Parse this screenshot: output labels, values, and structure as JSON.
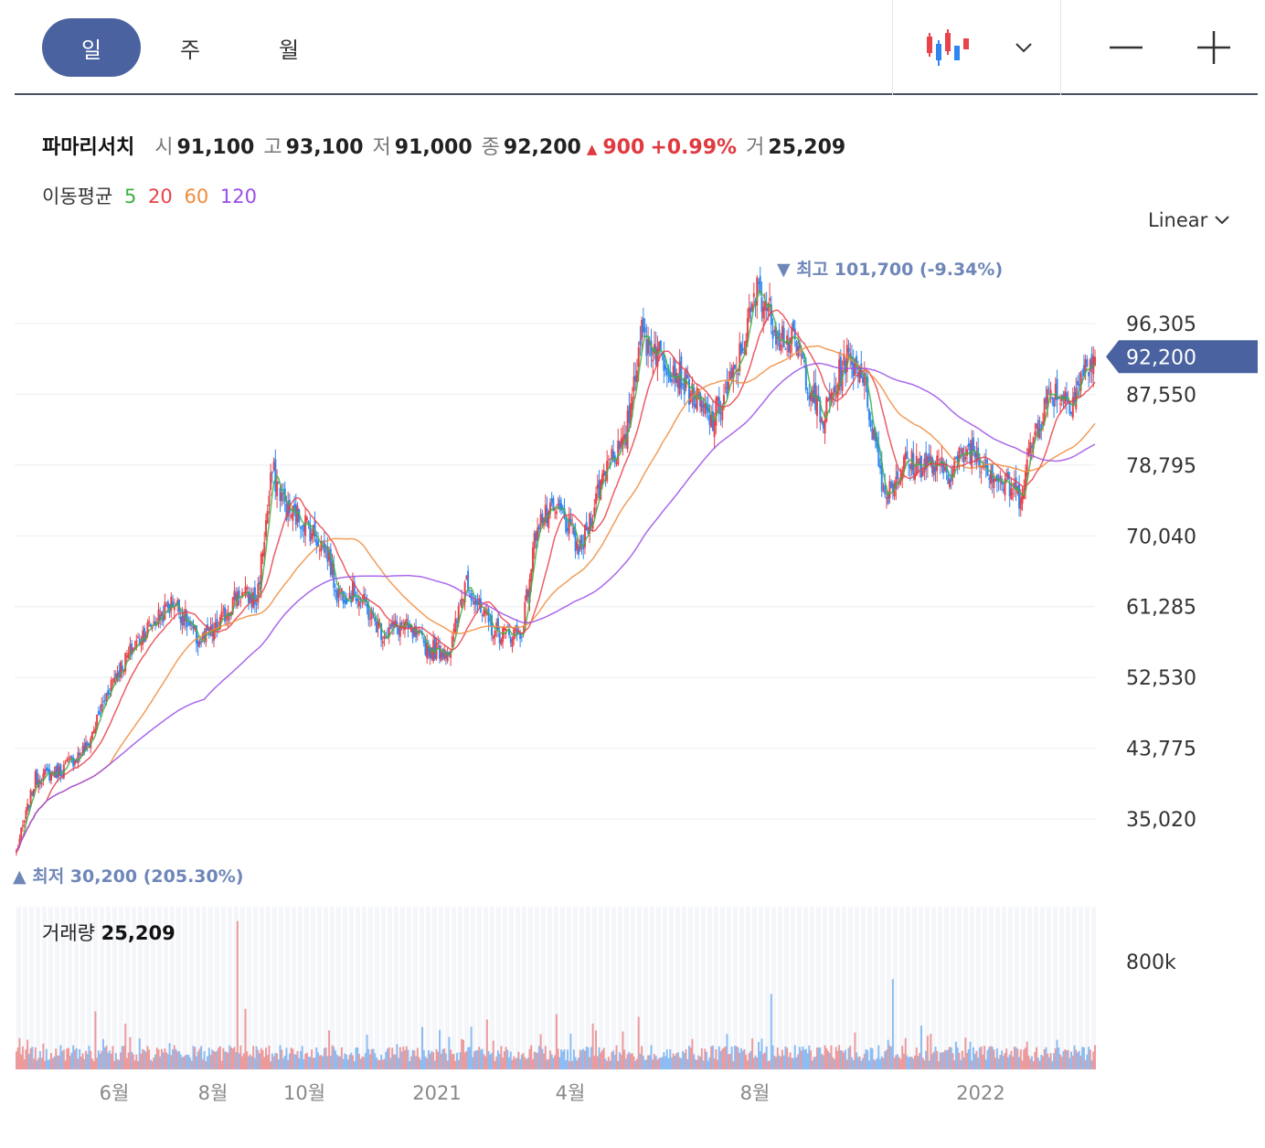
{
  "tabs": [
    {
      "label": "일",
      "active": true
    },
    {
      "label": "주",
      "active": false
    },
    {
      "label": "월",
      "active": false
    }
  ],
  "toolbar": {
    "chart_type_icon": "candlestick-icon",
    "dropdown_icon": "chevron-down-icon",
    "zoom_out_icon": "minus-icon",
    "zoom_in_icon": "plus-icon"
  },
  "stock": {
    "name": "파마리서치",
    "open_label": "시",
    "open": "91,100",
    "high_label": "고",
    "high": "93,100",
    "low_label": "저",
    "low": "91,000",
    "close_label": "종",
    "close": "92,200",
    "change_arrow": "▲",
    "change": "900",
    "change_pct": "+0.99%",
    "volume_label": "거",
    "volume": "25,209"
  },
  "moving_average": {
    "label": "이동평균",
    "periods": [
      {
        "label": "5",
        "color": "#3cb043"
      },
      {
        "label": "20",
        "color": "#e8424a"
      },
      {
        "label": "60",
        "color": "#f08c3c"
      },
      {
        "label": "120",
        "color": "#9b4de8"
      }
    ]
  },
  "scale": {
    "label": "Linear"
  },
  "colors": {
    "up": "#e8424a",
    "down": "#2f86f0",
    "accent": "#4a63a0",
    "annotation": "#6e86b8"
  },
  "chart_data": {
    "type": "candlestick",
    "y_ticks": [
      "96,305",
      "87,550",
      "78,795",
      "70,040",
      "61,285",
      "52,530",
      "43,775",
      "35,020"
    ],
    "y_tick_values": [
      96305,
      87550,
      78795,
      70040,
      61285,
      52530,
      43775,
      35020
    ],
    "current_price_label": "92,200",
    "current_price": 92200,
    "high_annotation": {
      "arrow": "▼",
      "label": "최고",
      "value": "101,700",
      "pct": "(-9.34%)"
    },
    "high_value": 101700,
    "low_annotation": {
      "arrow": "▲",
      "label": "최저",
      "value": "30,200",
      "pct": "(205.30%)"
    },
    "low_value": 30200,
    "x_labels": [
      "6월",
      "8월",
      "10월",
      "2021",
      "4월",
      "8월",
      "2022"
    ],
    "price_path": [
      [
        0,
        31000
      ],
      [
        12,
        40000
      ],
      [
        28,
        41000
      ],
      [
        45,
        44000
      ],
      [
        60,
        52000
      ],
      [
        80,
        58000
      ],
      [
        100,
        62000
      ],
      [
        115,
        57000
      ],
      [
        125,
        58000
      ],
      [
        140,
        63000
      ],
      [
        152,
        62000
      ],
      [
        162,
        78000
      ],
      [
        172,
        73000
      ],
      [
        182,
        72000
      ],
      [
        197,
        68000
      ],
      [
        203,
        63000
      ],
      [
        215,
        63000
      ],
      [
        232,
        58000
      ],
      [
        244,
        59000
      ],
      [
        262,
        56000
      ],
      [
        275,
        56000
      ],
      [
        285,
        65000
      ],
      [
        295,
        60000
      ],
      [
        305,
        58000
      ],
      [
        320,
        58000
      ],
      [
        330,
        72000
      ],
      [
        345,
        73000
      ],
      [
        357,
        68000
      ],
      [
        375,
        80000
      ],
      [
        385,
        81000
      ],
      [
        395,
        95000
      ],
      [
        420,
        90000
      ],
      [
        440,
        84000
      ],
      [
        455,
        90000
      ],
      [
        470,
        101000
      ],
      [
        480,
        96000
      ],
      [
        495,
        93000
      ],
      [
        510,
        84000
      ],
      [
        525,
        92000
      ],
      [
        535,
        91000
      ],
      [
        550,
        75000
      ],
      [
        562,
        79000
      ],
      [
        575,
        79000
      ],
      [
        590,
        78000
      ],
      [
        605,
        81000
      ],
      [
        622,
        77000
      ],
      [
        635,
        75000
      ],
      [
        645,
        83000
      ],
      [
        655,
        88000
      ],
      [
        668,
        87000
      ],
      [
        678,
        91000
      ],
      [
        683,
        92200
      ]
    ],
    "volume": {
      "label": "거래량",
      "last": "25,209",
      "tick_label": "800k",
      "tick_value": 800000,
      "spikes": [
        [
          50,
          430000
        ],
        [
          140,
          1100000
        ],
        [
          145,
          450000
        ],
        [
          298,
          370000
        ],
        [
          342,
          410000
        ],
        [
          365,
          340000
        ],
        [
          394,
          390000
        ],
        [
          478,
          560000
        ],
        [
          555,
          670000
        ],
        [
          659,
          220000
        ]
      ]
    }
  }
}
